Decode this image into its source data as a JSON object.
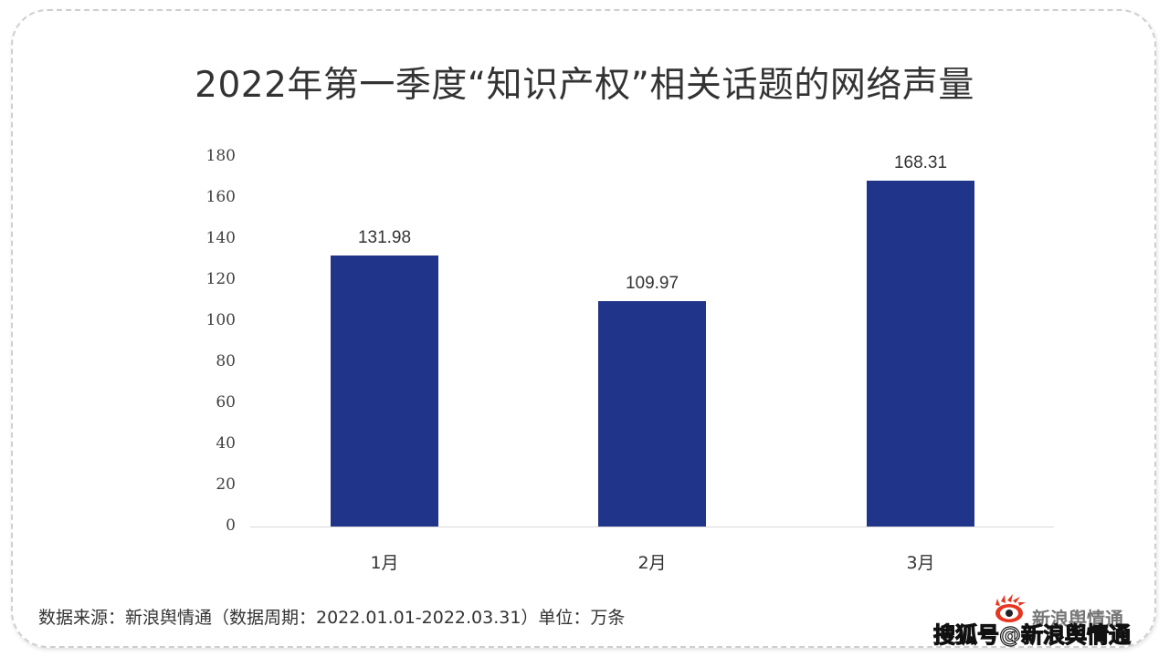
{
  "title": "2022年第一季度“知识产权”相关话题的网络声量",
  "footer": "数据来源：新浪舆情通（数据周期：2022.01.01-2022.03.31）单位：万条",
  "watermark": "搜狐号@新浪舆情通",
  "logo_text": "新浪舆情通",
  "colors": {
    "bar": "#203589",
    "title": "#333333",
    "axis": "#d9d9d9"
  },
  "y_ticks": [
    "180",
    "160",
    "140",
    "120",
    "100",
    "80",
    "60",
    "40",
    "20",
    "0"
  ],
  "bars": [
    {
      "category": "1月",
      "value": 131.98,
      "label": "131.98"
    },
    {
      "category": "2月",
      "value": 109.97,
      "label": "109.97"
    },
    {
      "category": "3月",
      "value": 168.31,
      "label": "168.31"
    }
  ],
  "chart_data": {
    "type": "bar",
    "title": "2022年第一季度“知识产权”相关话题的网络声量",
    "categories": [
      "1月",
      "2月",
      "3月"
    ],
    "values": [
      131.98,
      109.97,
      168.31
    ],
    "xlabel": "",
    "ylabel": "",
    "unit": "万条",
    "ylim": [
      0,
      180
    ],
    "yticks": [
      0,
      20,
      40,
      60,
      80,
      100,
      120,
      140,
      160,
      180
    ],
    "grid": false,
    "legend": null,
    "data_labels": true,
    "source_note": "数据来源：新浪舆情通（数据周期：2022.01.01-2022.03.31）单位：万条"
  }
}
